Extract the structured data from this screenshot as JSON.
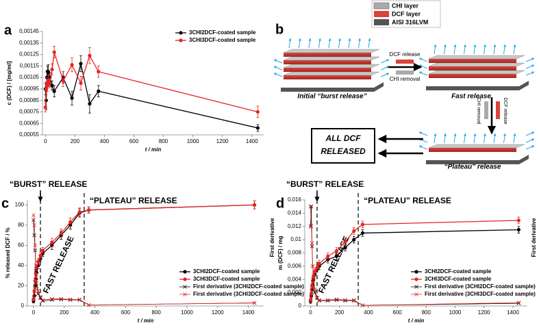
{
  "chart_data": [
    {
      "type": "line",
      "panel": "a",
      "xlabel": "t / min",
      "ylabel": "c (DCF) / [mg/ml]",
      "legend": "top-right",
      "x": [
        0,
        5,
        10,
        15,
        20,
        30,
        45,
        60,
        120,
        180,
        240,
        300,
        360,
        1440
      ],
      "xlim": [
        -20,
        1480
      ],
      "xticks": [
        0,
        200,
        400,
        600,
        800,
        1000,
        1200,
        1400
      ],
      "ylim": [
        0.00055,
        0.00145
      ],
      "yticks": [
        {
          "value": 0.00055,
          "label": "0,00055"
        },
        {
          "value": 0.00065,
          "label": "0,00065"
        },
        {
          "value": 0.00075,
          "label": "0,00075"
        },
        {
          "value": 0.00085,
          "label": "0,00085"
        },
        {
          "value": 0.00095,
          "label": "0,00095"
        },
        {
          "value": 0.00105,
          "label": "0,00105"
        },
        {
          "value": 0.00115,
          "label": "0,00115"
        },
        {
          "value": 0.00125,
          "label": "0,00125"
        },
        {
          "value": 0.00135,
          "label": "0,00135"
        },
        {
          "value": 0.00145,
          "label": "0,00145"
        }
      ],
      "series": [
        {
          "name": "3CHI2DCF-coated sample",
          "color": "#000000",
          "marker": "o",
          "values": [
            0.00095,
            0.00085,
            0.00105,
            0.0011,
            0.0011,
            0.00105,
            0.00098,
            0.00093,
            0.00105,
            0.00087,
            0.00117,
            0.00082,
            0.00093,
            0.00061
          ],
          "errors": [
            5e-05,
            8e-05,
            6e-05,
            5e-05,
            6e-05,
            4e-05,
            4e-05,
            5e-05,
            5e-05,
            6e-05,
            7e-05,
            8e-05,
            5e-05,
            3e-05
          ]
        },
        {
          "name": "3CHI3DCF-coated sample",
          "color": "#e8231f",
          "marker": "o",
          "values": [
            0.00079,
            0.00095,
            0.001,
            0.00098,
            0.00102,
            0.001,
            0.00112,
            0.00127,
            0.00102,
            0.00116,
            0.001,
            0.00124,
            0.0011,
            0.00075
          ],
          "errors": [
            4e-05,
            6e-05,
            5e-05,
            5e-05,
            5e-05,
            4e-05,
            5e-05,
            5e-05,
            5e-05,
            6e-05,
            6e-05,
            7e-05,
            5e-05,
            5e-05
          ]
        }
      ]
    },
    {
      "type": "line",
      "panel": "c",
      "xlabel": "t / min",
      "ylabel": "% released DCF / %",
      "y2label": "First derivative",
      "legend": "bottom-right",
      "x": [
        0,
        5,
        10,
        15,
        20,
        30,
        45,
        60,
        120,
        180,
        240,
        300,
        360,
        1440
      ],
      "xlim": [
        -40,
        1500
      ],
      "xticks": [
        0,
        200,
        400,
        600,
        800,
        1000,
        1200,
        1400
      ],
      "ylim": [
        0,
        105
      ],
      "yticks": [
        0,
        20,
        40,
        60,
        80,
        100
      ],
      "dividers": [
        45,
        330
      ],
      "annotations": [
        "“BURST” RELEASE",
        "“PLATEAU” RELEASE",
        "FAST RELEASE"
      ],
      "series": [
        {
          "name": "3CHI2DCF-coated sample",
          "color": "#000000",
          "marker": "o",
          "values": [
            5,
            10,
            20,
            27,
            33,
            40,
            47,
            52,
            60,
            70,
            80,
            92,
            95,
            100
          ],
          "errors": [
            2,
            3,
            3,
            3,
            3,
            3,
            3,
            3,
            4,
            4,
            4,
            4,
            3,
            4
          ]
        },
        {
          "name": "3CHI3DCF-coated sample",
          "color": "#e8231f",
          "marker": "o",
          "values": [
            7,
            15,
            25,
            32,
            38,
            44,
            50,
            55,
            63,
            72,
            83,
            93,
            95,
            100
          ],
          "errors": [
            2,
            3,
            3,
            3,
            3,
            3,
            3,
            3,
            4,
            4,
            4,
            4,
            3,
            4
          ]
        },
        {
          "name": "First derivative (3CHI2DCF-coated sample)",
          "color": "#000000",
          "marker": "x",
          "values": [
            85,
            70,
            55,
            35,
            20,
            12,
            8,
            5,
            6,
            6.5,
            6,
            6,
            1,
            3
          ]
        },
        {
          "name": "First derivative (3CHI3DCF-coated sample)",
          "color": "#e8231f",
          "marker": "x",
          "values": [
            90,
            80,
            60,
            40,
            25,
            15,
            9,
            6,
            7,
            7,
            6.5,
            6.5,
            1,
            3
          ]
        }
      ]
    },
    {
      "type": "line",
      "panel": "d",
      "xlabel": "t / min",
      "ylabel": "m (DCF) / mg",
      "y2label": "First derivative",
      "legend": "bottom-right",
      "x": [
        0,
        5,
        10,
        15,
        20,
        30,
        45,
        60,
        120,
        180,
        240,
        300,
        360,
        1440
      ],
      "xlim": [
        -40,
        1500
      ],
      "xticks": [
        0,
        200,
        400,
        600,
        800,
        1000,
        1200,
        1400
      ],
      "ylim": [
        0,
        0.016
      ],
      "yticks": [
        0,
        {
          "value": 0.002,
          "label": "0,002"
        },
        {
          "value": 0.004,
          "label": "0,004"
        },
        {
          "value": 0.006,
          "label": "0,006"
        },
        {
          "value": 0.008,
          "label": "0,008"
        },
        {
          "value": 0.01,
          "label": "0,01"
        },
        {
          "value": 0.012,
          "label": "0,012"
        },
        {
          "value": 0.014,
          "label": "0,014"
        },
        {
          "value": 0.016,
          "label": "0,016"
        }
      ],
      "dividers": [
        45,
        330
      ],
      "annotations": [
        "“BURST” RELEASE",
        "“PLATEAU” RELEASE",
        "FAST RELEASE"
      ],
      "series": [
        {
          "name": "3CHI2DCF-coated sample",
          "color": "#000000",
          "marker": "o",
          "values": [
            0.0007,
            0.0015,
            0.0025,
            0.0032,
            0.004,
            0.0048,
            0.0055,
            0.006,
            0.007,
            0.0075,
            0.0088,
            0.01,
            0.011,
            0.0115
          ],
          "errors": [
            0.0003,
            0.0004,
            0.0004,
            0.0004,
            0.0004,
            0.0004,
            0.0004,
            0.0005,
            0.0005,
            0.0005,
            0.0005,
            0.0005,
            0.0005,
            0.0005
          ]
        },
        {
          "name": "3CHI3DCF-coated sample",
          "color": "#e8231f",
          "marker": "o",
          "values": [
            0.0009,
            0.0019,
            0.003,
            0.0038,
            0.0045,
            0.0052,
            0.0058,
            0.0064,
            0.0075,
            0.0083,
            0.0097,
            0.0113,
            0.0123,
            0.0129
          ],
          "errors": [
            0.0003,
            0.0004,
            0.0004,
            0.0004,
            0.0004,
            0.0004,
            0.0004,
            0.0005,
            0.0005,
            0.0005,
            0.0005,
            0.0005,
            0.0005,
            0.0005
          ]
        },
        {
          "name": "First derivative (3CHI2DCF-coated sample)",
          "color": "#000000",
          "marker": "x",
          "values": [
            0.012,
            0.015,
            0.009,
            0.006,
            0.004,
            0.002,
            0.0012,
            0.0008,
            0.0008,
            0.0009,
            0.0008,
            0.0008,
            0.0001,
            0.0004
          ]
        },
        {
          "name": "First derivative (3CHI3DCF-coated sample)",
          "color": "#e8231f",
          "marker": "x",
          "values": [
            0.015,
            0.012,
            0.0095,
            0.006,
            0.0042,
            0.0025,
            0.0013,
            0.0009,
            0.0009,
            0.001,
            0.0009,
            0.0009,
            0.0001,
            0.0005
          ]
        }
      ]
    }
  ],
  "diagram": {
    "panel": "b",
    "legend": [
      "CHI layer",
      "DCF layer",
      "AISI 316LVM"
    ],
    "steps": [
      "DCF release",
      "CHI removal"
    ],
    "stages": [
      "Initial “burst release”",
      "Fast release",
      "“Plateau” release"
    ],
    "steps2": [
      "CHI removal",
      "DCF release"
    ],
    "result": [
      "ALL DCF",
      "RELEASED"
    ]
  }
}
